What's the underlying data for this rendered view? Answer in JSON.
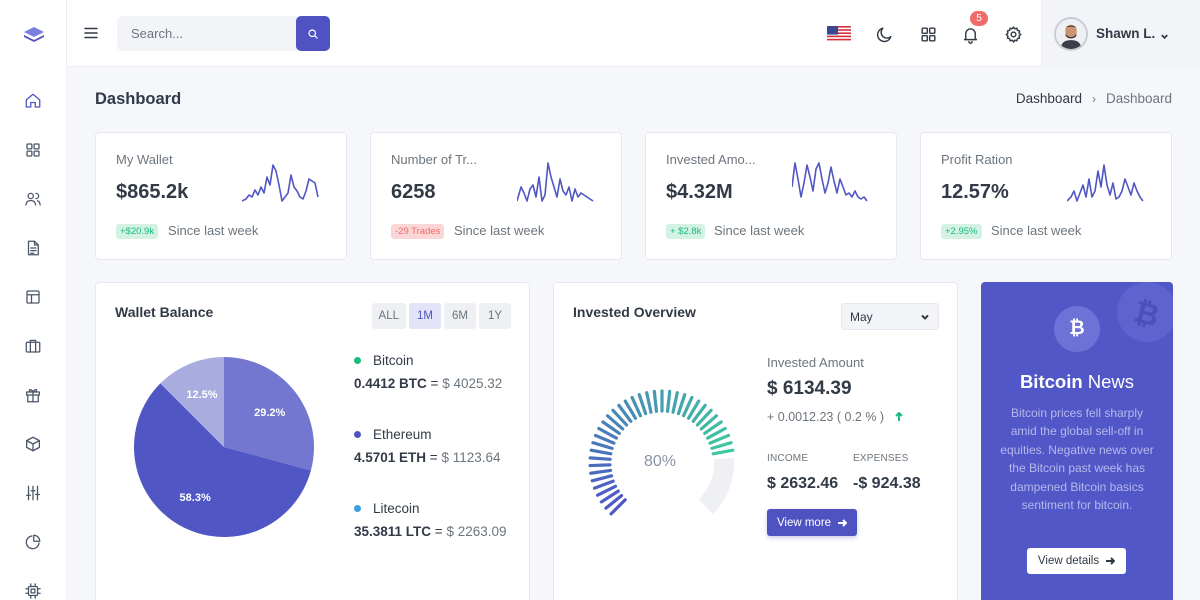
{
  "topbar": {
    "search_placeholder": "Search...",
    "notification_count": "5",
    "user_name": "Shawn L."
  },
  "page": {
    "title": "Dashboard",
    "breadcrumb": [
      "Dashboard",
      "Dashboard"
    ]
  },
  "stats": [
    {
      "label": "My Wallet",
      "value": "$865.2k",
      "chip": "+$20.9k",
      "chip_tone": "positive",
      "since": "Since last week"
    },
    {
      "label": "Number of Tr...",
      "value": "6258",
      "chip": "-29 Trades",
      "chip_tone": "negative",
      "since": "Since last week"
    },
    {
      "label": "Invested Amo...",
      "value": "$4.32M",
      "chip": "+ $2.8k",
      "chip_tone": "positive",
      "since": "Since last week"
    },
    {
      "label": "Profit Ration",
      "value": "12.57%",
      "chip": "+2.95%",
      "chip_tone": "positive",
      "since": "Since last week"
    }
  ],
  "wallet_balance": {
    "title": "Wallet Balance",
    "ranges": [
      "ALL",
      "1M",
      "6M",
      "1Y"
    ],
    "active_range": "1M",
    "coins": [
      {
        "name": "Bitcoin",
        "amount": "0.4412 BTC",
        "usd": "$ 4025.32",
        "color": "#1abc7c"
      },
      {
        "name": "Ethereum",
        "amount": "4.5701 ETH",
        "usd": "$ 1123.64",
        "color": "#4f53c1"
      },
      {
        "name": "Litecoin",
        "amount": "35.3811 LTC",
        "usd": "$ 2263.09",
        "color": "#3b9fe0"
      }
    ],
    "pie": [
      {
        "label": "29.2%",
        "value": 29.2,
        "color": "#7377d0"
      },
      {
        "label": "58.3%",
        "value": 58.3,
        "color": "#5056c3"
      },
      {
        "label": "12.5%",
        "value": 12.5,
        "color": "#a9acdf"
      }
    ]
  },
  "invested_overview": {
    "title": "Invested Overview",
    "month": "May",
    "gauge_percent": 80,
    "gauge_label": "80%",
    "invested_label": "Invested Amount",
    "invested_amount": "$ 6134.39",
    "change": "+ 0.0012.23 ( 0.2 % )",
    "income_label": "INCOME",
    "income_value": "$ 2632.46",
    "expenses_label": "EXPENSES",
    "expenses_value": "-$ 924.38",
    "button": "View more"
  },
  "news": {
    "coin_symbol": "₿",
    "title_bold": "Bitcoin",
    "title_rest": "News",
    "body": "Bitcoin prices fell sharply amid the global sell-off in equities. Negative news over the Bitcoin past week has dampened Bitcoin basics sentiment for bitcoin.",
    "button": "View details"
  },
  "colors": {
    "primary": "#4f53c1",
    "success": "#1abc7c",
    "danger": "#f26b6b",
    "news_bg": "#5157c6"
  }
}
